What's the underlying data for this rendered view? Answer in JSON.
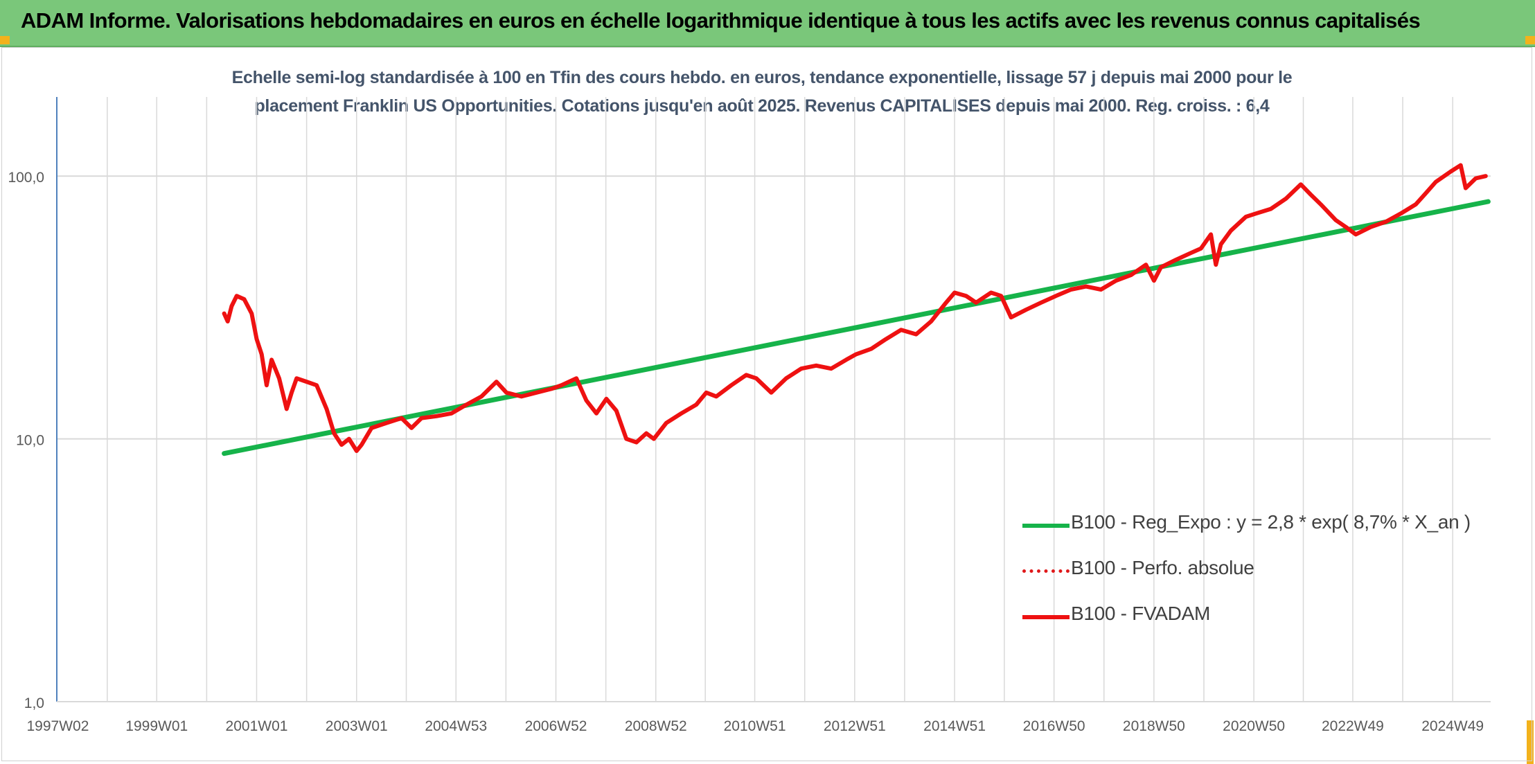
{
  "header": {
    "title": "ADAM Informe. Valorisations hebdomadaires en euros en échelle logarithmique identique à tous les actifs avec les revenus connus capitalisés"
  },
  "chart_data": {
    "type": "line",
    "title_line1": "Echelle semi-log standardisée à 100 en Tfin des cours hebdo. en euros, tendance exponentielle, lissage 57 j depuis mai 2000 pour le",
    "title_line2": "placement Franklin US Opportunities. Cotations jusqu'en août 2025. Revenus CAPITALISES depuis mai 2000. Reg. croiss. : 6,4",
    "y_scale": "log",
    "ylim": [
      1,
      200
    ],
    "y_ticks": [
      1,
      10,
      100
    ],
    "y_tick_labels": [
      "1,0",
      "10,0",
      "100,0"
    ],
    "xlim": [
      1997.0,
      2025.7
    ],
    "x_ticks": [
      1997.02,
      1999.0,
      2001.0,
      2003.0,
      2004.99,
      2006.99,
      2008.99,
      2010.97,
      2012.97,
      2014.97,
      2016.96,
      2018.96,
      2020.96,
      2022.94,
      2024.94
    ],
    "x_tick_labels": [
      "1997W02",
      "1999W01",
      "2001W01",
      "2003W01",
      "2004W53",
      "2006W52",
      "2008W52",
      "2010W51",
      "2012W51",
      "2014W51",
      "2016W50",
      "2018W50",
      "2020W50",
      "2022W49",
      "2024W49"
    ],
    "grid": true,
    "legend_position": "bottom-right",
    "colors": {
      "regression": "#16b34a",
      "perf_absolue": "#e0191b",
      "fvadam": "#ee1111",
      "grid": "#d9d9d9",
      "axis": "#4f81bd",
      "tick_text": "#595959"
    },
    "series": [
      {
        "name": "B100 - Reg_Expo : y = 2,8 * exp( 8,7% *  X_an )",
        "style": "solid",
        "x": [
          2000.35,
          2025.65
        ],
        "y": [
          8.8,
          80
        ]
      },
      {
        "name": "B100 - Perfo. absolue",
        "style": "dotted",
        "x": [],
        "y": []
      },
      {
        "name": "B100 - FVADAM",
        "style": "solid",
        "x": [
          2000.35,
          2000.42,
          2000.5,
          2000.6,
          2000.75,
          2000.9,
          2001.0,
          2001.1,
          2001.2,
          2001.3,
          2001.45,
          2001.6,
          2001.7,
          2001.8,
          2002.0,
          2002.2,
          2002.4,
          2002.55,
          2002.7,
          2002.85,
          2003.0,
          2003.1,
          2003.3,
          2003.6,
          2003.9,
          2004.1,
          2004.3,
          2004.6,
          2004.9,
          2005.2,
          2005.5,
          2005.8,
          2006.0,
          2006.3,
          2006.6,
          2006.9,
          2007.1,
          2007.4,
          2007.6,
          2007.8,
          2008.0,
          2008.2,
          2008.4,
          2008.6,
          2008.8,
          2008.95,
          2009.2,
          2009.5,
          2009.8,
          2010.0,
          2010.2,
          2010.5,
          2010.8,
          2011.0,
          2011.3,
          2011.6,
          2011.9,
          2012.2,
          2012.5,
          2012.8,
          2013.0,
          2013.3,
          2013.6,
          2013.9,
          2014.2,
          2014.5,
          2014.8,
          2014.97,
          2015.2,
          2015.4,
          2015.7,
          2015.9,
          2016.1,
          2016.4,
          2016.7,
          2017.0,
          2017.3,
          2017.6,
          2017.9,
          2018.2,
          2018.5,
          2018.8,
          2018.96,
          2019.1,
          2019.4,
          2019.7,
          2019.9,
          2020.1,
          2020.2,
          2020.3,
          2020.5,
          2020.8,
          2021.0,
          2021.3,
          2021.6,
          2021.9,
          2022.1,
          2022.3,
          2022.6,
          2022.8,
          2023.0,
          2023.3,
          2023.6,
          2023.9,
          2024.2,
          2024.4,
          2024.6,
          2024.9,
          2025.1,
          2025.2,
          2025.4,
          2025.6
        ],
        "y": [
          30,
          28,
          32,
          35,
          34,
          30,
          24,
          21,
          16,
          20,
          17,
          13,
          15,
          17,
          16.5,
          16,
          13,
          10.5,
          9.5,
          10,
          9,
          9.5,
          11,
          11.5,
          12,
          11,
          12,
          12.2,
          12.5,
          13.5,
          14.5,
          16.5,
          15,
          14.5,
          15,
          15.5,
          16,
          17,
          14,
          12.5,
          14.2,
          12.8,
          10,
          9.7,
          10.5,
          10,
          11.5,
          12.5,
          13.5,
          15,
          14.5,
          16,
          17.5,
          17,
          15,
          17,
          18.5,
          19,
          18.5,
          20,
          21,
          22,
          24,
          26,
          25,
          28,
          33,
          36,
          35,
          33,
          36,
          35,
          29,
          31,
          33,
          35,
          37,
          38,
          37,
          40,
          42,
          46,
          40,
          45,
          48,
          51,
          53,
          60,
          46,
          55,
          62,
          70,
          72,
          75,
          82,
          93,
          85,
          78,
          68,
          64,
          60,
          64,
          67,
          72,
          78,
          86,
          95,
          104,
          110,
          90,
          98,
          100
        ]
      }
    ]
  }
}
